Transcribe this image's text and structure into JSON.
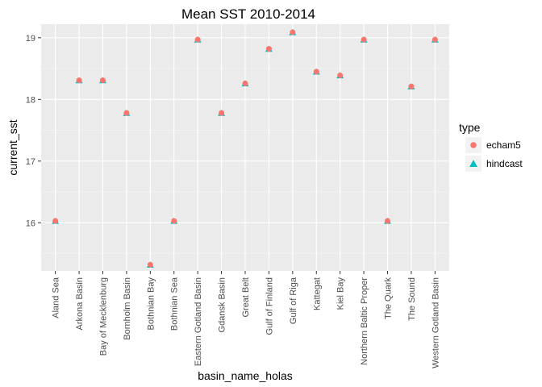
{
  "chart_data": {
    "type": "scatter",
    "title": "Mean SST 2010-2014",
    "xlabel": "basin_name_holas",
    "ylabel": "current_sst",
    "categories": [
      "Aland Sea",
      "Arkona Basin",
      "Bay of Mecklenburg",
      "Bornholm Basin",
      "Bothnian Bay",
      "Bothnian Sea",
      "Eastern Gotland Basin",
      "Gdansk Basin",
      "Great Belt",
      "Gulf of Finland",
      "Gulf of Riga",
      "Kattegat",
      "Kiel Bay",
      "Northern Baltic Proper",
      "The Quark",
      "The Sound",
      "Western Gotland Basin"
    ],
    "yticks": [
      16,
      17,
      18,
      19
    ],
    "ylim": [
      15.22,
      19.22
    ],
    "grid": true,
    "legend": {
      "title": "type",
      "position": "right",
      "entries": [
        {
          "name": "echam5",
          "shape": "circle",
          "color": "#F8766D"
        },
        {
          "name": "hindcast",
          "shape": "triangle",
          "color": "#00BFC4"
        }
      ]
    },
    "series": [
      {
        "name": "hindcast",
        "shape": "triangle",
        "color": "#00BFC4",
        "values": [
          16.03,
          18.31,
          18.31,
          17.78,
          15.32,
          16.03,
          18.97,
          17.78,
          18.26,
          18.82,
          19.09,
          18.45,
          18.39,
          18.97,
          16.03,
          18.21,
          18.97
        ]
      },
      {
        "name": "echam5",
        "shape": "circle",
        "color": "#F8766D",
        "values": [
          16.03,
          18.31,
          18.31,
          17.78,
          15.32,
          16.03,
          18.97,
          17.78,
          18.26,
          18.82,
          19.09,
          18.45,
          18.39,
          18.97,
          16.03,
          18.21,
          18.97
        ]
      }
    ]
  }
}
